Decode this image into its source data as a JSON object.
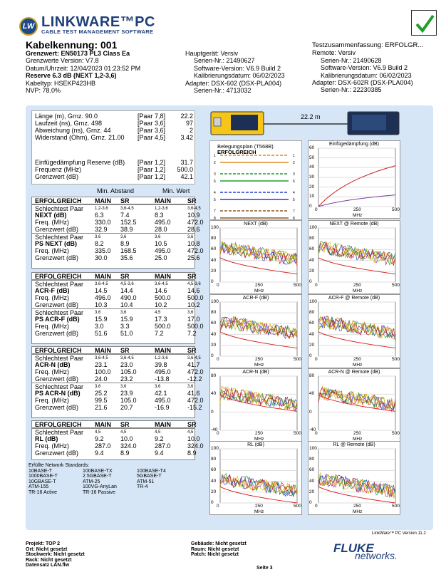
{
  "brand": {
    "badge": "LW",
    "title": "LINKWARE™PC",
    "subtitle": "CABLE TEST MANAGEMENT SOFTWARE"
  },
  "header": {
    "cable_id": "Kabelkennung: 001",
    "limit": "Grenzwert: EN50173 PL3 Class Ea",
    "limit_version": "Grenzwerte Version: V7.8",
    "datetime": "Datum/Uhrzeit: 12/04/2023  01:23:52 PM",
    "reserve": "Reserve 6.3 dB (NEXT 1,2-3,6)",
    "cable_type": "Kabeltyp: HSEKP423HB",
    "nvp": "NVP: 78.0%",
    "main_unit": "Hauptgerät: Versiv",
    "main_serial": "Serien-Nr.: 21490627",
    "main_sw": "Software-Version: V6.9 Build 2",
    "main_cal": "Kalibrierungsdatum: 06/02/2023",
    "main_adapter": "Adapter: DSX-602 (DSX-PLA004)",
    "main_adapter_serial": "Serien-Nr.: 4713032",
    "summary": "Testzusammenfassung: ERFOLGR...",
    "remote_unit": "Remote: Versiv",
    "remote_serial": "Serien-Nr.: 21490628",
    "remote_sw": "Software-Version: V6.9 Build 2",
    "remote_cal": "Kalibrierungsdatum: 06/02/2023",
    "remote_adapter": "Adapter: DSX-602R (DSX-PLA004)",
    "remote_adapter_serial": "Serien-Nr.: 22230385"
  },
  "summary_box": {
    "rows": [
      [
        "Länge (m), Grnz. 90.0",
        "[Paar 7,8]",
        "22.2"
      ],
      [
        "Laufzeit (ns), Grnz. 498",
        "[Paar 3,6]",
        "97"
      ],
      [
        "Abweichung (ns), Grnz. 44",
        "[Paar 3,6]",
        "2"
      ],
      [
        "Widerstand (Ohm), Grnz. 21.00",
        "[Paar 4,5]",
        "3.42"
      ]
    ],
    "rows2": [
      [
        "Einfügedämpfung Reserve (dB)",
        "[Paar 1,2]",
        "31.7"
      ],
      [
        "Frequenz (MHz)",
        "[Paar 1,2]",
        "500.0"
      ],
      [
        "Grenzwert (dB)",
        "[Paar 1,2]",
        "42.1"
      ]
    ],
    "min_dist": "Min. Abstand",
    "min_val": "Min. Wert"
  },
  "cable_len": "22.2 m",
  "wiremap": {
    "title": "Belegungsplan (T568B)",
    "status": "ERFOLGREICH",
    "pins": [
      "1",
      "2",
      "3",
      "6",
      "4",
      "5",
      "7",
      "8",
      "S"
    ]
  },
  "tables": [
    {
      "head": [
        "ERFOLGREICH",
        "MAIN",
        "SR",
        "MAIN",
        "SR"
      ],
      "rows": [
        [
          "Schlechtest Paar",
          "1,2-3,6",
          "3,6-4,5",
          "1,2-3,6",
          "3,6-4,5"
        ],
        [
          "NEXT (dB)",
          "6.3",
          "7.4",
          "8.3",
          "10.9"
        ],
        [
          "Freq. (MHz)",
          "330.0",
          "152.5",
          "495.0",
          "472.0"
        ],
        [
          "Grenzwert (dB)",
          "32.9",
          "38.9",
          "28.0",
          "28.6"
        ],
        [
          "Schlechtest Paar",
          "3,6",
          "3,6",
          "3,6",
          "3,6"
        ],
        [
          "PS NEXT (dB)",
          "8.2",
          "8.9",
          "10.5",
          "10.8"
        ],
        [
          "Freq. (MHz)",
          "335.0",
          "168.5",
          "495.0",
          "472.0"
        ],
        [
          "Grenzwert (dB)",
          "30.0",
          "35.6",
          "25.0",
          "25.6"
        ]
      ]
    },
    {
      "head": [
        "ERFOLGREICH",
        "MAIN",
        "SR",
        "MAIN",
        "SR"
      ],
      "rows": [
        [
          "Schlechtest Paar",
          "3,6-4,5",
          "4,5-3,6",
          "3,6-4,5",
          "4,5-3,6"
        ],
        [
          "ACR-F (dB)",
          "14.5",
          "14.4",
          "14.6",
          "14.6"
        ],
        [
          "Freq. (MHz)",
          "496.0",
          "490.0",
          "500.0",
          "500.0"
        ],
        [
          "Grenzwert (dB)",
          "10.3",
          "10.4",
          "10.2",
          "10.2"
        ],
        [
          "Schlechtest Paar",
          "3,6",
          "3,6",
          "4,5",
          "3,6"
        ],
        [
          "PS ACR-F (dB)",
          "15.9",
          "15.9",
          "17.3",
          "17.0"
        ],
        [
          "Freq. (MHz)",
          "3.0",
          "3.3",
          "500.0",
          "500.0"
        ],
        [
          "Grenzwert (dB)",
          "51.6",
          "51.0",
          "7.2",
          "7.2"
        ]
      ]
    },
    {
      "head": [
        "ERFOLGREICH",
        "MAIN",
        "SR",
        "MAIN",
        "SR"
      ],
      "rows": [
        [
          "Schlechtest Paar",
          "3,6-4,5",
          "3,6-4,5",
          "1,2-3,6",
          "3,6-4,5"
        ],
        [
          "ACR-N (dB)",
          "23.1",
          "23.0",
          "39.8",
          "41.7"
        ],
        [
          "Freq. (MHz)",
          "100.0",
          "105.0",
          "495.0",
          "472.0"
        ],
        [
          "Grenzwert (dB)",
          "24.0",
          "23.2",
          "-13.8",
          "-12.2"
        ],
        [
          "Schlechtest Paar",
          "3,6",
          "3,6",
          "3,6",
          "3,6"
        ],
        [
          "PS ACR-N (dB)",
          "25.2",
          "23.9",
          "42.1",
          "41.6"
        ],
        [
          "Freq. (MHz)",
          "99.5",
          "105.0",
          "495.0",
          "472.0"
        ],
        [
          "Grenzwert (dB)",
          "21.6",
          "20.7",
          "-16.9",
          "-15.2"
        ]
      ]
    },
    {
      "head": [
        "ERFOLGREICH",
        "MAIN",
        "SR",
        "MAIN",
        "SR"
      ],
      "rows": [
        [
          "Schlechtest Paar",
          "4,5",
          "4,5",
          "4,5",
          "4,5"
        ],
        [
          "RL (dB)",
          "9.2",
          "10.0",
          "9.2",
          "10.0"
        ],
        [
          "Freq. (MHz)",
          "287.0",
          "324.0",
          "287.0",
          "324.0"
        ],
        [
          "Grenzwert (dB)",
          "9.4",
          "8.9",
          "9.4",
          "8.9"
        ]
      ]
    }
  ],
  "standards": {
    "title": "Erfüllte Network Standards:",
    "items": [
      "10BASE-T",
      "100BASE-TX",
      "100BASE-T4",
      "1000BASE-T",
      "2.5GBASE-T",
      "5GBASE-T",
      "10GBASE-T",
      "ATM-25",
      "ATM-51",
      "ATM-155",
      "100VG-AnyLan",
      "TR-4",
      "TR-16 Active",
      "TR-16 Passive",
      ""
    ]
  },
  "charts": {
    "insertion": {
      "title": "Einfügedämpfung (dB)",
      "yticks": [
        "60",
        "50",
        "40",
        "30",
        "20",
        "10",
        "0"
      ],
      "xticks": [
        "0",
        "250",
        "500"
      ],
      "xlabel": "MHz"
    },
    "next": {
      "title": "NEXT (dB)",
      "yticks": [
        "100",
        "80",
        "60",
        "40",
        "20",
        "0"
      ],
      "xticks": [
        "0",
        "250",
        "500"
      ],
      "xlabel": "MHz"
    },
    "next_r": {
      "title": "NEXT @ Remote (dB)",
      "yticks": [
        "100",
        "80",
        "60",
        "40",
        "20",
        "0"
      ],
      "xticks": [
        "0",
        "250",
        "500"
      ],
      "xlabel": "MHz"
    },
    "acrf": {
      "title": "ACR-F (dB)",
      "yticks": [
        "100",
        "80",
        "60",
        "40",
        "20",
        "0"
      ],
      "xticks": [
        "0",
        "250",
        "500"
      ],
      "xlabel": "MHz"
    },
    "acrf_r": {
      "title": "ACR-F @ Remote (dB)",
      "yticks": [
        "100",
        "80",
        "60",
        "40",
        "20",
        "0"
      ],
      "xticks": [
        "0",
        "250",
        "500"
      ],
      "xlabel": "MHz"
    },
    "acrn": {
      "title": "ACR-N (dB)",
      "yticks": [
        "80",
        "40",
        "0",
        "-40"
      ],
      "xticks": [
        "0",
        "250",
        "500"
      ],
      "xlabel": "MHz"
    },
    "acrn_r": {
      "title": "ACR-N @ Remote (dB)",
      "yticks": [
        "80",
        "40",
        "0",
        "-40"
      ],
      "xticks": [
        "0",
        "250",
        "500"
      ],
      "xlabel": "MHz"
    },
    "rl": {
      "title": "RL (dB)",
      "yticks": [
        "100",
        "80",
        "60",
        "40",
        "20",
        "0"
      ],
      "xticks": [
        "0",
        "250",
        "500"
      ],
      "xlabel": "MHz"
    },
    "rl_r": {
      "title": "RL @ Remote (dB)",
      "yticks": [
        "100",
        "80",
        "60",
        "40",
        "20",
        "0"
      ],
      "xticks": [
        "0",
        "250",
        "500"
      ],
      "xlabel": "MHz"
    }
  },
  "version": "LinkWare™ PC Version 11.2",
  "footer": {
    "projekt": "Projekt: TOP 2",
    "ort": "Ort: Nicht gesetzt",
    "stockwerk": "Stockwerk: Nicht gesetzt",
    "rack": "Rack: Nicht gesetzt",
    "datensatz": "Datensatz LAN.flw",
    "gebaeude": "Gebäude: Nicht gesetzt",
    "raum": "Raum: Nicht gesetzt",
    "patch": "Patch: Nicht gesetzt",
    "seite": "Seite 3",
    "fluke": "FLUKE",
    "networks": "networks."
  },
  "colors": {
    "accent": "#1e3f7a",
    "panel": "#d6e6f7",
    "pass": "#1e9e2a",
    "limit": "#d81f1f"
  }
}
